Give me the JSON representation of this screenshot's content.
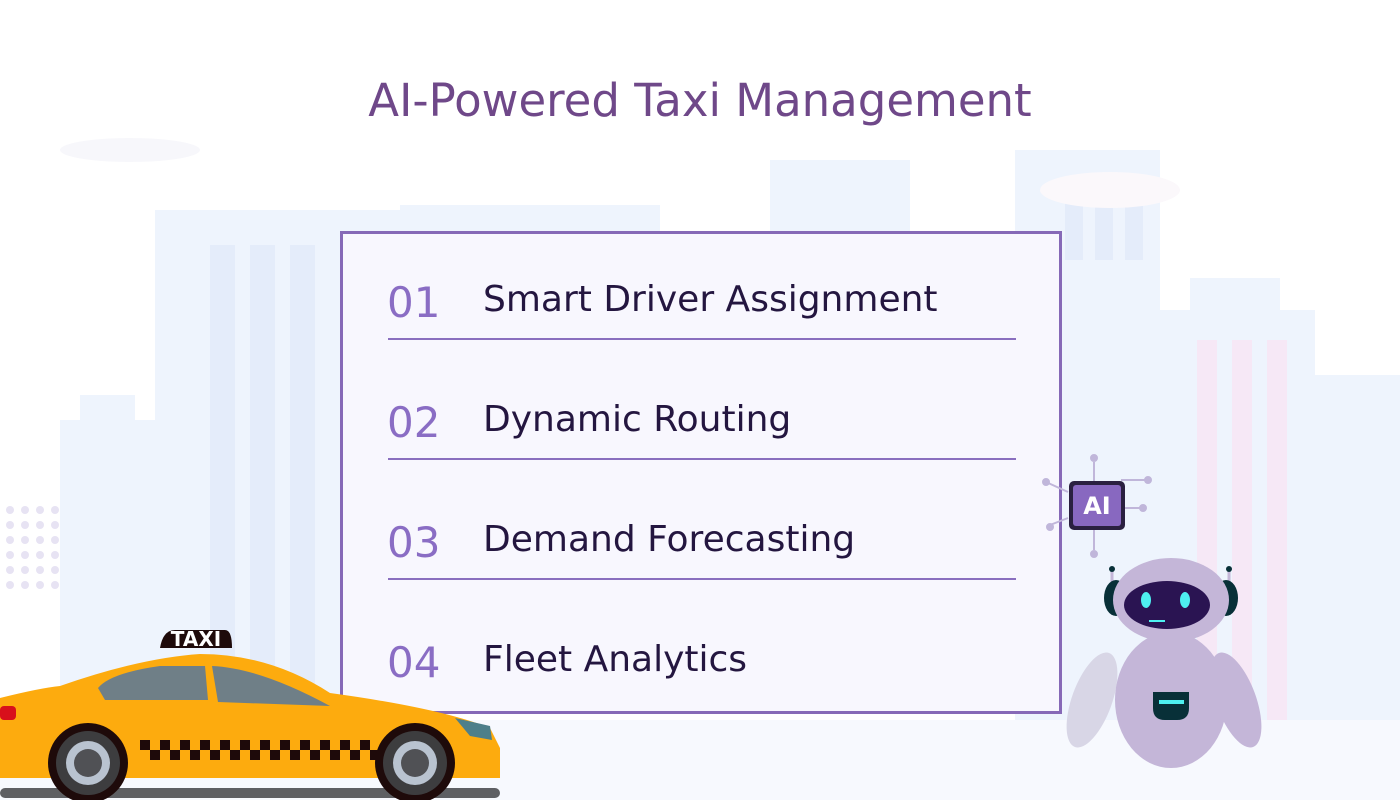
{
  "title": "AI-Powered Taxi Management",
  "items": [
    {
      "number": "01",
      "label": "Smart Driver Assignment"
    },
    {
      "number": "02",
      "label": "Dynamic Routing"
    },
    {
      "number": "03",
      "label": "Demand Forecasting"
    },
    {
      "number": "04",
      "label": "Fleet Analytics"
    }
  ],
  "taxi_sign": "TAXI",
  "ai_chip_label": "AI",
  "colors": {
    "title": "#6f4889",
    "accent": "#8669b7",
    "number": "#8a6dc4",
    "label": "#241640",
    "taxi": "#fdab0e"
  }
}
